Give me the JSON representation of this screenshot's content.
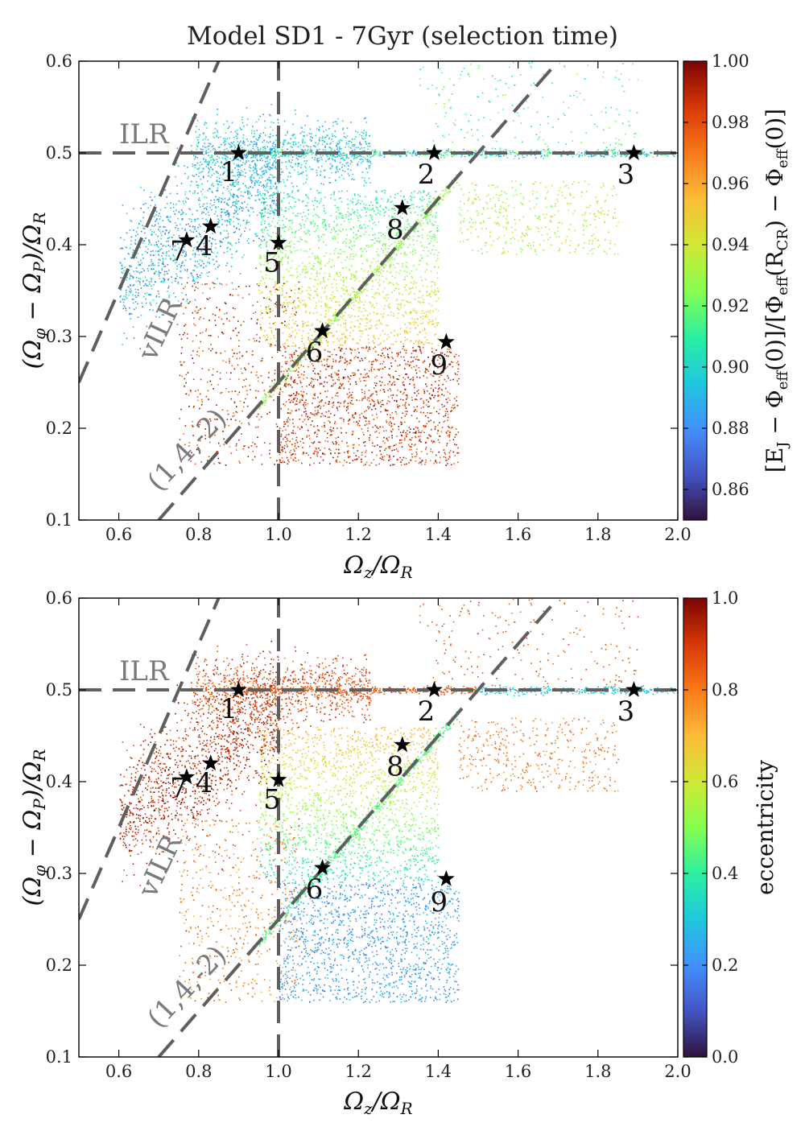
{
  "title": "Model SD1 - 7Gyr (selection time)",
  "chart_data": [
    {
      "type": "scatter",
      "panel": "top",
      "xlabel": "Ω_z/Ω_R",
      "ylabel": "(Ω_φ − Ω_P)/Ω_R",
      "xlim": [
        0.5,
        2.0
      ],
      "ylim": [
        0.1,
        0.6
      ],
      "xticks": [
        "0.6",
        "0.8",
        "1.0",
        "1.2",
        "1.4",
        "1.6",
        "1.8",
        "2.0"
      ],
      "yticks": [
        "0.1",
        "0.2",
        "0.3",
        "0.4",
        "0.5",
        "0.6"
      ],
      "colorbar": {
        "label": "[E_J − Φ_eff(0)]/[Φ_eff(R_CR) − Φ_eff(0)]",
        "range": [
          0.85,
          1.0
        ],
        "ticks": [
          "0.86",
          "0.88",
          "0.90",
          "0.92",
          "0.94",
          "0.96",
          "0.98",
          "1.00"
        ]
      },
      "resonance_labels": {
        "ilr": "ILR",
        "vilr": "vILR",
        "other": "(1,4,-2)"
      },
      "stars": [
        {
          "id": "1",
          "x": 0.9,
          "y": 0.5
        },
        {
          "id": "2",
          "x": 1.39,
          "y": 0.5
        },
        {
          "id": "3",
          "x": 1.89,
          "y": 0.5
        },
        {
          "id": "4",
          "x": 0.83,
          "y": 0.42
        },
        {
          "id": "5",
          "x": 1.0,
          "y": 0.402
        },
        {
          "id": "6",
          "x": 1.11,
          "y": 0.306
        },
        {
          "id": "7",
          "x": 0.77,
          "y": 0.405
        },
        {
          "id": "8",
          "x": 1.31,
          "y": 0.44
        },
        {
          "id": "9",
          "x": 1.42,
          "y": 0.294
        }
      ]
    },
    {
      "type": "scatter",
      "panel": "bottom",
      "xlabel": "Ω_z/Ω_R",
      "ylabel": "(Ω_φ − Ω_P)/Ω_R",
      "xlim": [
        0.5,
        2.0
      ],
      "ylim": [
        0.1,
        0.6
      ],
      "xticks": [
        "0.6",
        "0.8",
        "1.0",
        "1.2",
        "1.4",
        "1.6",
        "1.8",
        "2.0"
      ],
      "yticks": [
        "0.1",
        "0.2",
        "0.3",
        "0.4",
        "0.5",
        "0.6"
      ],
      "colorbar": {
        "label": "eccentricity",
        "range": [
          0.0,
          1.0
        ],
        "ticks": [
          "0.0",
          "0.2",
          "0.4",
          "0.6",
          "0.8",
          "1.0"
        ]
      },
      "resonance_labels": {
        "ilr": "ILR",
        "vilr": "vILR",
        "other": "(1,4,-2)"
      },
      "stars": [
        {
          "id": "1",
          "x": 0.9,
          "y": 0.5
        },
        {
          "id": "2",
          "x": 1.39,
          "y": 0.5
        },
        {
          "id": "3",
          "x": 1.89,
          "y": 0.5
        },
        {
          "id": "4",
          "x": 0.83,
          "y": 0.42
        },
        {
          "id": "5",
          "x": 1.0,
          "y": 0.402
        },
        {
          "id": "6",
          "x": 1.11,
          "y": 0.306
        },
        {
          "id": "7",
          "x": 0.77,
          "y": 0.405
        },
        {
          "id": "8",
          "x": 1.31,
          "y": 0.44
        },
        {
          "id": "9",
          "x": 1.42,
          "y": 0.294
        }
      ]
    }
  ]
}
